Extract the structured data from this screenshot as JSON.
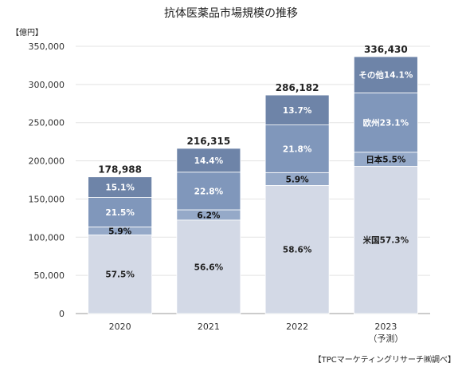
{
  "chart_data": {
    "type": "bar",
    "stacked": true,
    "title": "抗体医薬品市場規模の推移",
    "unit_label": "【億円】",
    "source": "【TPCマーケティングリサーチ㈱調べ】",
    "categories": [
      "2020",
      "2021",
      "2022",
      "2023"
    ],
    "category_notes": [
      "",
      "",
      "",
      "（予測）"
    ],
    "totals": [
      178988,
      216315,
      286182,
      336430
    ],
    "total_labels": [
      "178,988",
      "216,315",
      "286,182",
      "336,430"
    ],
    "ylim": [
      0,
      350000
    ],
    "yticks": [
      0,
      50000,
      100000,
      150000,
      200000,
      250000,
      300000,
      350000
    ],
    "ytick_labels": [
      "0",
      "50,000",
      "100,000",
      "150,000",
      "200,000",
      "250,000",
      "300,000",
      "350,000"
    ],
    "grid": true,
    "series": [
      {
        "shares": [
          57.5,
          56.6,
          58.6,
          57.3
        ],
        "labels": [
          "57.5%",
          "56.6%",
          "58.6%",
          "米国57.3%"
        ],
        "color": "#d3d9e6",
        "label_color": "#222222"
      },
      {
        "shares": [
          5.9,
          6.2,
          5.9,
          5.5
        ],
        "labels": [
          "5.9%",
          "6.2%",
          "5.9%",
          "日本5.5%"
        ],
        "color": "#95a9c8",
        "label_color": "#111111"
      },
      {
        "shares": [
          21.5,
          22.8,
          21.8,
          23.1
        ],
        "labels": [
          "21.5%",
          "22.8%",
          "21.8%",
          "欧州23.1%"
        ],
        "color": "#8097bb",
        "label_color": "#ffffff"
      },
      {
        "shares": [
          15.1,
          14.4,
          13.7,
          14.1
        ],
        "labels": [
          "15.1%",
          "14.4%",
          "13.7%",
          "その他14.1%"
        ],
        "color": "#6e84a8",
        "label_color": "#ffffff"
      }
    ]
  }
}
